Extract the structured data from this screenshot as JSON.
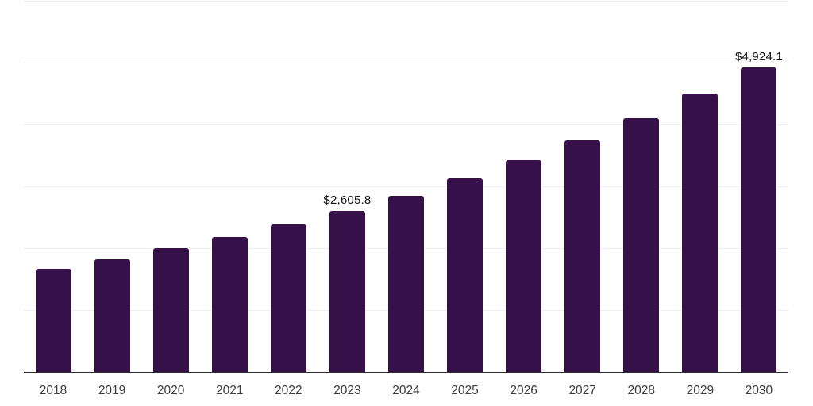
{
  "chart_data": {
    "type": "bar",
    "title": "",
    "categories": [
      "2018",
      "2019",
      "2020",
      "2021",
      "2022",
      "2023",
      "2024",
      "2025",
      "2026",
      "2027",
      "2028",
      "2029",
      "2030"
    ],
    "values": [
      1665,
      1825,
      2005,
      2180,
      2380,
      2605.8,
      2850,
      3125,
      3420,
      3745,
      4100,
      4495,
      4924.1
    ],
    "annotations": [
      {
        "category": "2023",
        "text": "$2,605.8"
      },
      {
        "category": "2030",
        "text": "$4,924.1"
      }
    ],
    "currency_prefix": "$",
    "ylim": [
      0,
      6000
    ],
    "gridline_step": 1000,
    "grid": "horizontal",
    "legend_position": "none",
    "y_tick_labels": "hidden",
    "xlabel": "",
    "ylabel": ""
  },
  "colors": {
    "bar": "#361149",
    "gridline": "#eeeeee",
    "axis_line": "#2e2e2e",
    "tick_label": "#3c3c3c",
    "annotation": "#121212",
    "background": "#ffffff"
  }
}
